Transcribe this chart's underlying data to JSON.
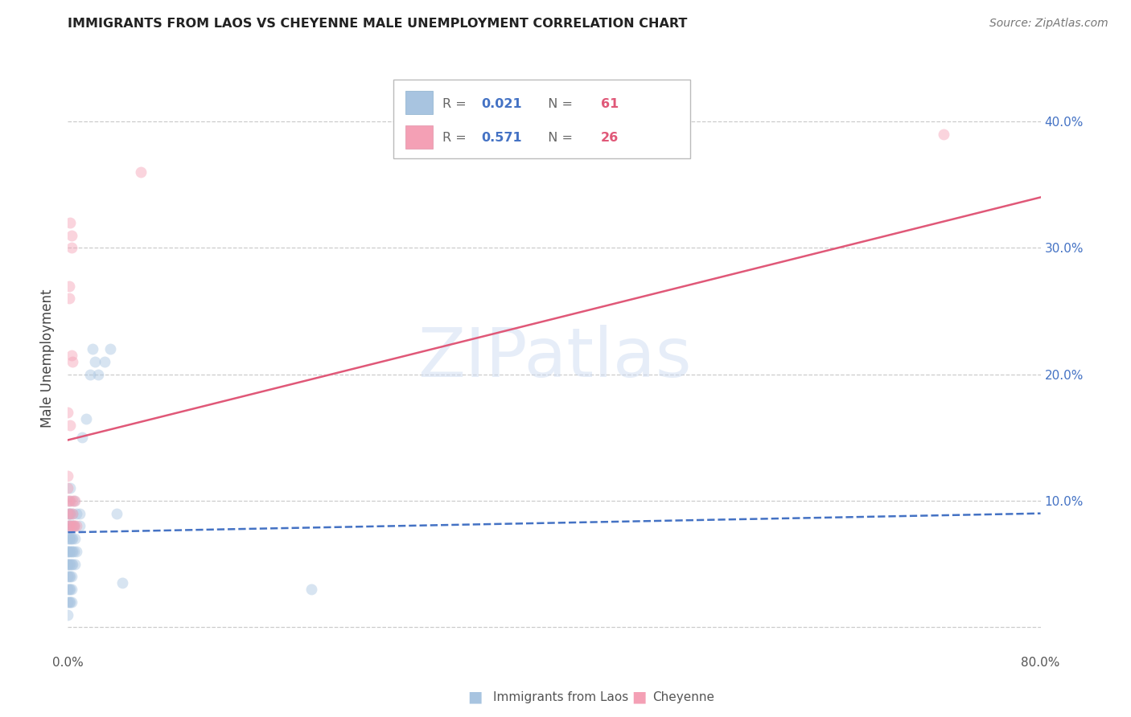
{
  "title": "IMMIGRANTS FROM LAOS VS CHEYENNE MALE UNEMPLOYMENT CORRELATION CHART",
  "source": "Source: ZipAtlas.com",
  "ylabel": "Male Unemployment",
  "watermark": "ZIPatlas",
  "legend_r1": "0.021",
  "legend_n1": "61",
  "legend_r2": "0.571",
  "legend_n2": "26",
  "blue_color": "#a8c4e0",
  "pink_color": "#f4a0b5",
  "blue_line_color": "#4472c4",
  "pink_line_color": "#e05878",
  "right_tick_color": "#4472c4",
  "blue_scatter_x": [
    0.0,
    0.0,
    0.0,
    0.0,
    0.0,
    0.0,
    0.0,
    0.0,
    0.0,
    0.0,
    0.001,
    0.001,
    0.001,
    0.001,
    0.001,
    0.001,
    0.001,
    0.001,
    0.001,
    0.001,
    0.002,
    0.002,
    0.002,
    0.002,
    0.002,
    0.002,
    0.002,
    0.002,
    0.002,
    0.003,
    0.003,
    0.003,
    0.003,
    0.003,
    0.003,
    0.003,
    0.004,
    0.004,
    0.004,
    0.004,
    0.004,
    0.005,
    0.005,
    0.005,
    0.006,
    0.006,
    0.007,
    0.007,
    0.01,
    0.01,
    0.012,
    0.015,
    0.018,
    0.02,
    0.022,
    0.025,
    0.03,
    0.035,
    0.04,
    0.045,
    0.2
  ],
  "blue_scatter_y": [
    0.07,
    0.08,
    0.06,
    0.05,
    0.04,
    0.03,
    0.02,
    0.01,
    0.05,
    0.06,
    0.09,
    0.07,
    0.06,
    0.05,
    0.04,
    0.03,
    0.02,
    0.08,
    0.09,
    0.1,
    0.08,
    0.07,
    0.06,
    0.05,
    0.04,
    0.03,
    0.02,
    0.09,
    0.11,
    0.08,
    0.07,
    0.06,
    0.05,
    0.04,
    0.03,
    0.02,
    0.09,
    0.08,
    0.07,
    0.06,
    0.05,
    0.1,
    0.08,
    0.06,
    0.07,
    0.05,
    0.09,
    0.06,
    0.09,
    0.08,
    0.15,
    0.165,
    0.2,
    0.22,
    0.21,
    0.2,
    0.21,
    0.22,
    0.09,
    0.035,
    0.03
  ],
  "pink_scatter_x": [
    0.0,
    0.0,
    0.0,
    0.0,
    0.0,
    0.001,
    0.001,
    0.001,
    0.001,
    0.002,
    0.002,
    0.002,
    0.002,
    0.003,
    0.003,
    0.003,
    0.003,
    0.004,
    0.004,
    0.004,
    0.005,
    0.005,
    0.006,
    0.007,
    0.06,
    0.72
  ],
  "pink_scatter_y": [
    0.12,
    0.17,
    0.09,
    0.1,
    0.11,
    0.27,
    0.26,
    0.08,
    0.08,
    0.32,
    0.16,
    0.1,
    0.09,
    0.31,
    0.3,
    0.215,
    0.08,
    0.21,
    0.1,
    0.09,
    0.08,
    0.08,
    0.1,
    0.08,
    0.36,
    0.39
  ],
  "blue_line_x": [
    0.0,
    0.8
  ],
  "blue_line_y": [
    0.075,
    0.09
  ],
  "pink_line_x": [
    0.0,
    0.8
  ],
  "pink_line_y": [
    0.148,
    0.34
  ],
  "xlim": [
    0.0,
    0.8
  ],
  "ylim": [
    -0.02,
    0.445
  ],
  "scatter_size": 100,
  "scatter_alpha": 0.45
}
